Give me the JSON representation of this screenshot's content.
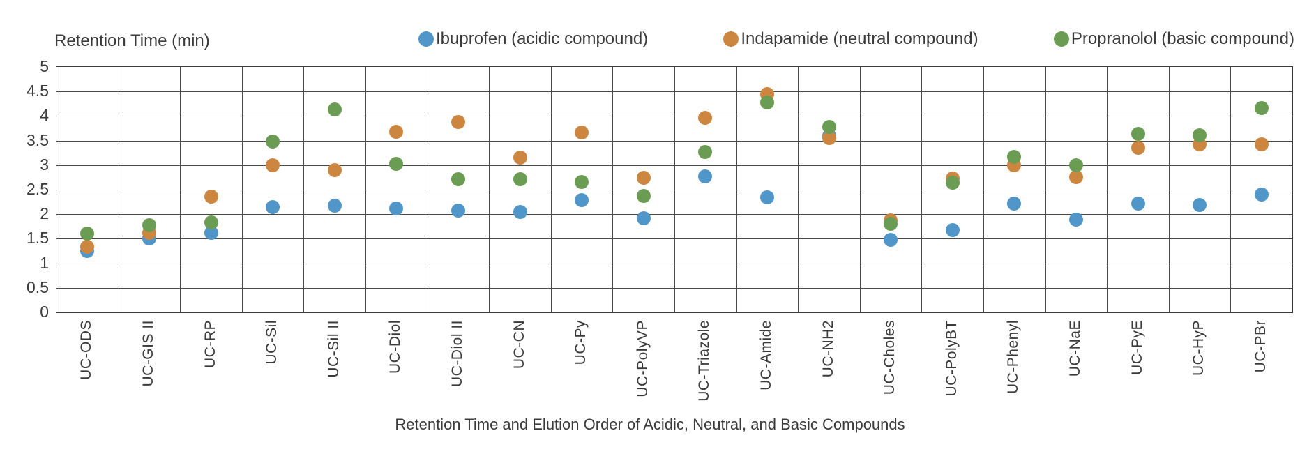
{
  "header": {
    "y_axis_title": "Retention Time (min)"
  },
  "caption": "Retention Time and Elution Order of Acidic, Neutral, and Basic Compounds",
  "colors": {
    "grid": "#4a4a4a",
    "text": "#3a3a3a"
  },
  "chart_data": {
    "type": "scatter",
    "title": "Retention Time and Elution Order of Acidic, Neutral, and Basic Compounds",
    "ylabel": "Retention Time (min)",
    "xlabel": "",
    "ylim": [
      0,
      5
    ],
    "ytick_step": 0.5,
    "grid": true,
    "legend_position": "top",
    "categories": [
      "UC-ODS",
      "UC-GIS II",
      "UC-RP",
      "UC-Sil",
      "UC-Sil II",
      "UC-Diol",
      "UC-Diol II",
      "UC-CN",
      "UC-Py",
      "UC-PolyVP",
      "UC-Triazole",
      "UC-Amide",
      "UC-NH2",
      "UC-Choles",
      "UC-PolyBT",
      "UC-Phenyl",
      "UC-NaE",
      "UC-PyE",
      "UC-HyP",
      "UC-PBr"
    ],
    "series": [
      {
        "name": "Ibuprofen (acidic compound)",
        "color": "#5096C8",
        "values": [
          1.25,
          1.5,
          1.62,
          2.14,
          2.17,
          2.12,
          2.07,
          2.05,
          2.28,
          1.92,
          2.77,
          2.35,
          3.6,
          1.48,
          1.67,
          2.22,
          1.89,
          2.22,
          2.19,
          2.4
        ]
      },
      {
        "name": "Indapamide (neutral compound)",
        "color": "#CD8640",
        "values": [
          1.33,
          1.62,
          2.36,
          3.0,
          2.9,
          3.68,
          3.88,
          3.15,
          3.66,
          2.74,
          3.97,
          4.45,
          3.55,
          1.88,
          2.73,
          3.0,
          2.76,
          3.35,
          3.43,
          3.43
        ]
      },
      {
        "name": "Propranolol (basic compound)",
        "color": "#6B9C53",
        "values": [
          1.6,
          1.77,
          1.83,
          3.48,
          4.14,
          3.03,
          2.71,
          2.71,
          2.66,
          2.37,
          3.26,
          4.28,
          3.78,
          1.8,
          2.64,
          3.17,
          3.0,
          3.63,
          3.61,
          4.16
        ]
      }
    ]
  }
}
